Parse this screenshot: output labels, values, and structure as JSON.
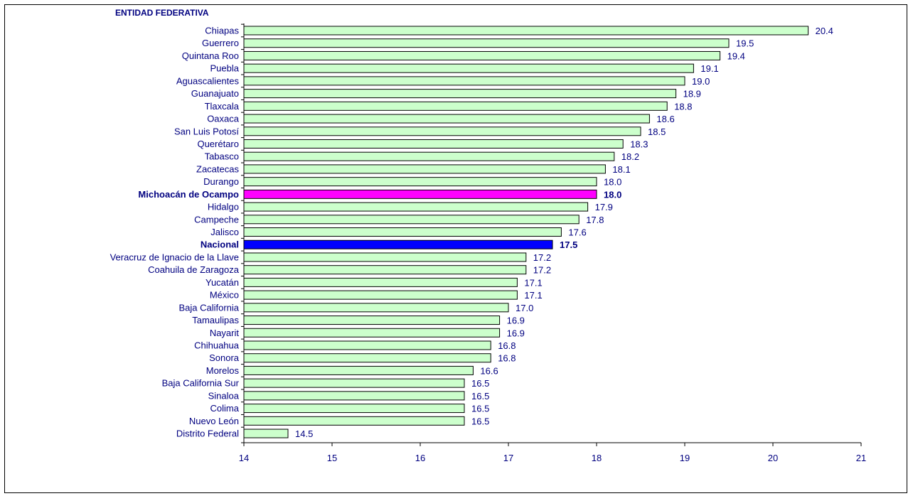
{
  "chart_data": {
    "type": "bar",
    "orientation": "horizontal",
    "category_header": "ENTIDAD FEDERATIVA",
    "categories": [
      "Chiapas",
      "Guerrero",
      "Quintana Roo",
      "Puebla",
      "Aguascalientes",
      "Guanajuato",
      "Tlaxcala",
      "Oaxaca",
      "San Luis Potosí",
      "Querétaro",
      "Tabasco",
      "Zacatecas",
      "Durango",
      "Michoacán de Ocampo",
      "Hidalgo",
      "Campeche",
      "Jalisco",
      "Nacional",
      "Veracruz de Ignacio de la Llave",
      "Coahuila de Zaragoza",
      "Yucatán",
      "México",
      "Baja California",
      "Tamaulipas",
      "Nayarit",
      "Chihuahua",
      "Sonora",
      "Morelos",
      "Baja California Sur",
      "Sinaloa",
      "Colima",
      "Nuevo León",
      "Distrito Federal"
    ],
    "values": [
      20.4,
      19.5,
      19.4,
      19.1,
      19.0,
      18.9,
      18.8,
      18.6,
      18.5,
      18.3,
      18.2,
      18.1,
      18.0,
      18.0,
      17.9,
      17.8,
      17.6,
      17.5,
      17.2,
      17.2,
      17.1,
      17.1,
      17.0,
      16.9,
      16.9,
      16.8,
      16.8,
      16.6,
      16.5,
      16.5,
      16.5,
      16.5,
      14.5
    ],
    "value_labels": [
      "20.4",
      "19.5",
      "19.4",
      "19.1",
      "19.0",
      "18.9",
      "18.8",
      "18.6",
      "18.5",
      "18.3",
      "18.2",
      "18.1",
      "18.0",
      "18.0",
      "17.9",
      "17.8",
      "17.6",
      "17.5",
      "17.2",
      "17.2",
      "17.1",
      "17.1",
      "17.0",
      "16.9",
      "16.9",
      "16.8",
      "16.8",
      "16.6",
      "16.5",
      "16.5",
      "16.5",
      "16.5",
      "14.5"
    ],
    "highlight": {
      "Michoacán de Ocampo": "#ff00ff",
      "Nacional": "#0000ff"
    },
    "xlim": [
      14,
      21
    ],
    "xticks": [
      14,
      15,
      16,
      17,
      18,
      19,
      20,
      21
    ],
    "grid": false,
    "colors": {
      "bar_fill": "#ccffcc",
      "bar_stroke": "#000000",
      "text": "#000080",
      "axis": "#000000"
    }
  }
}
